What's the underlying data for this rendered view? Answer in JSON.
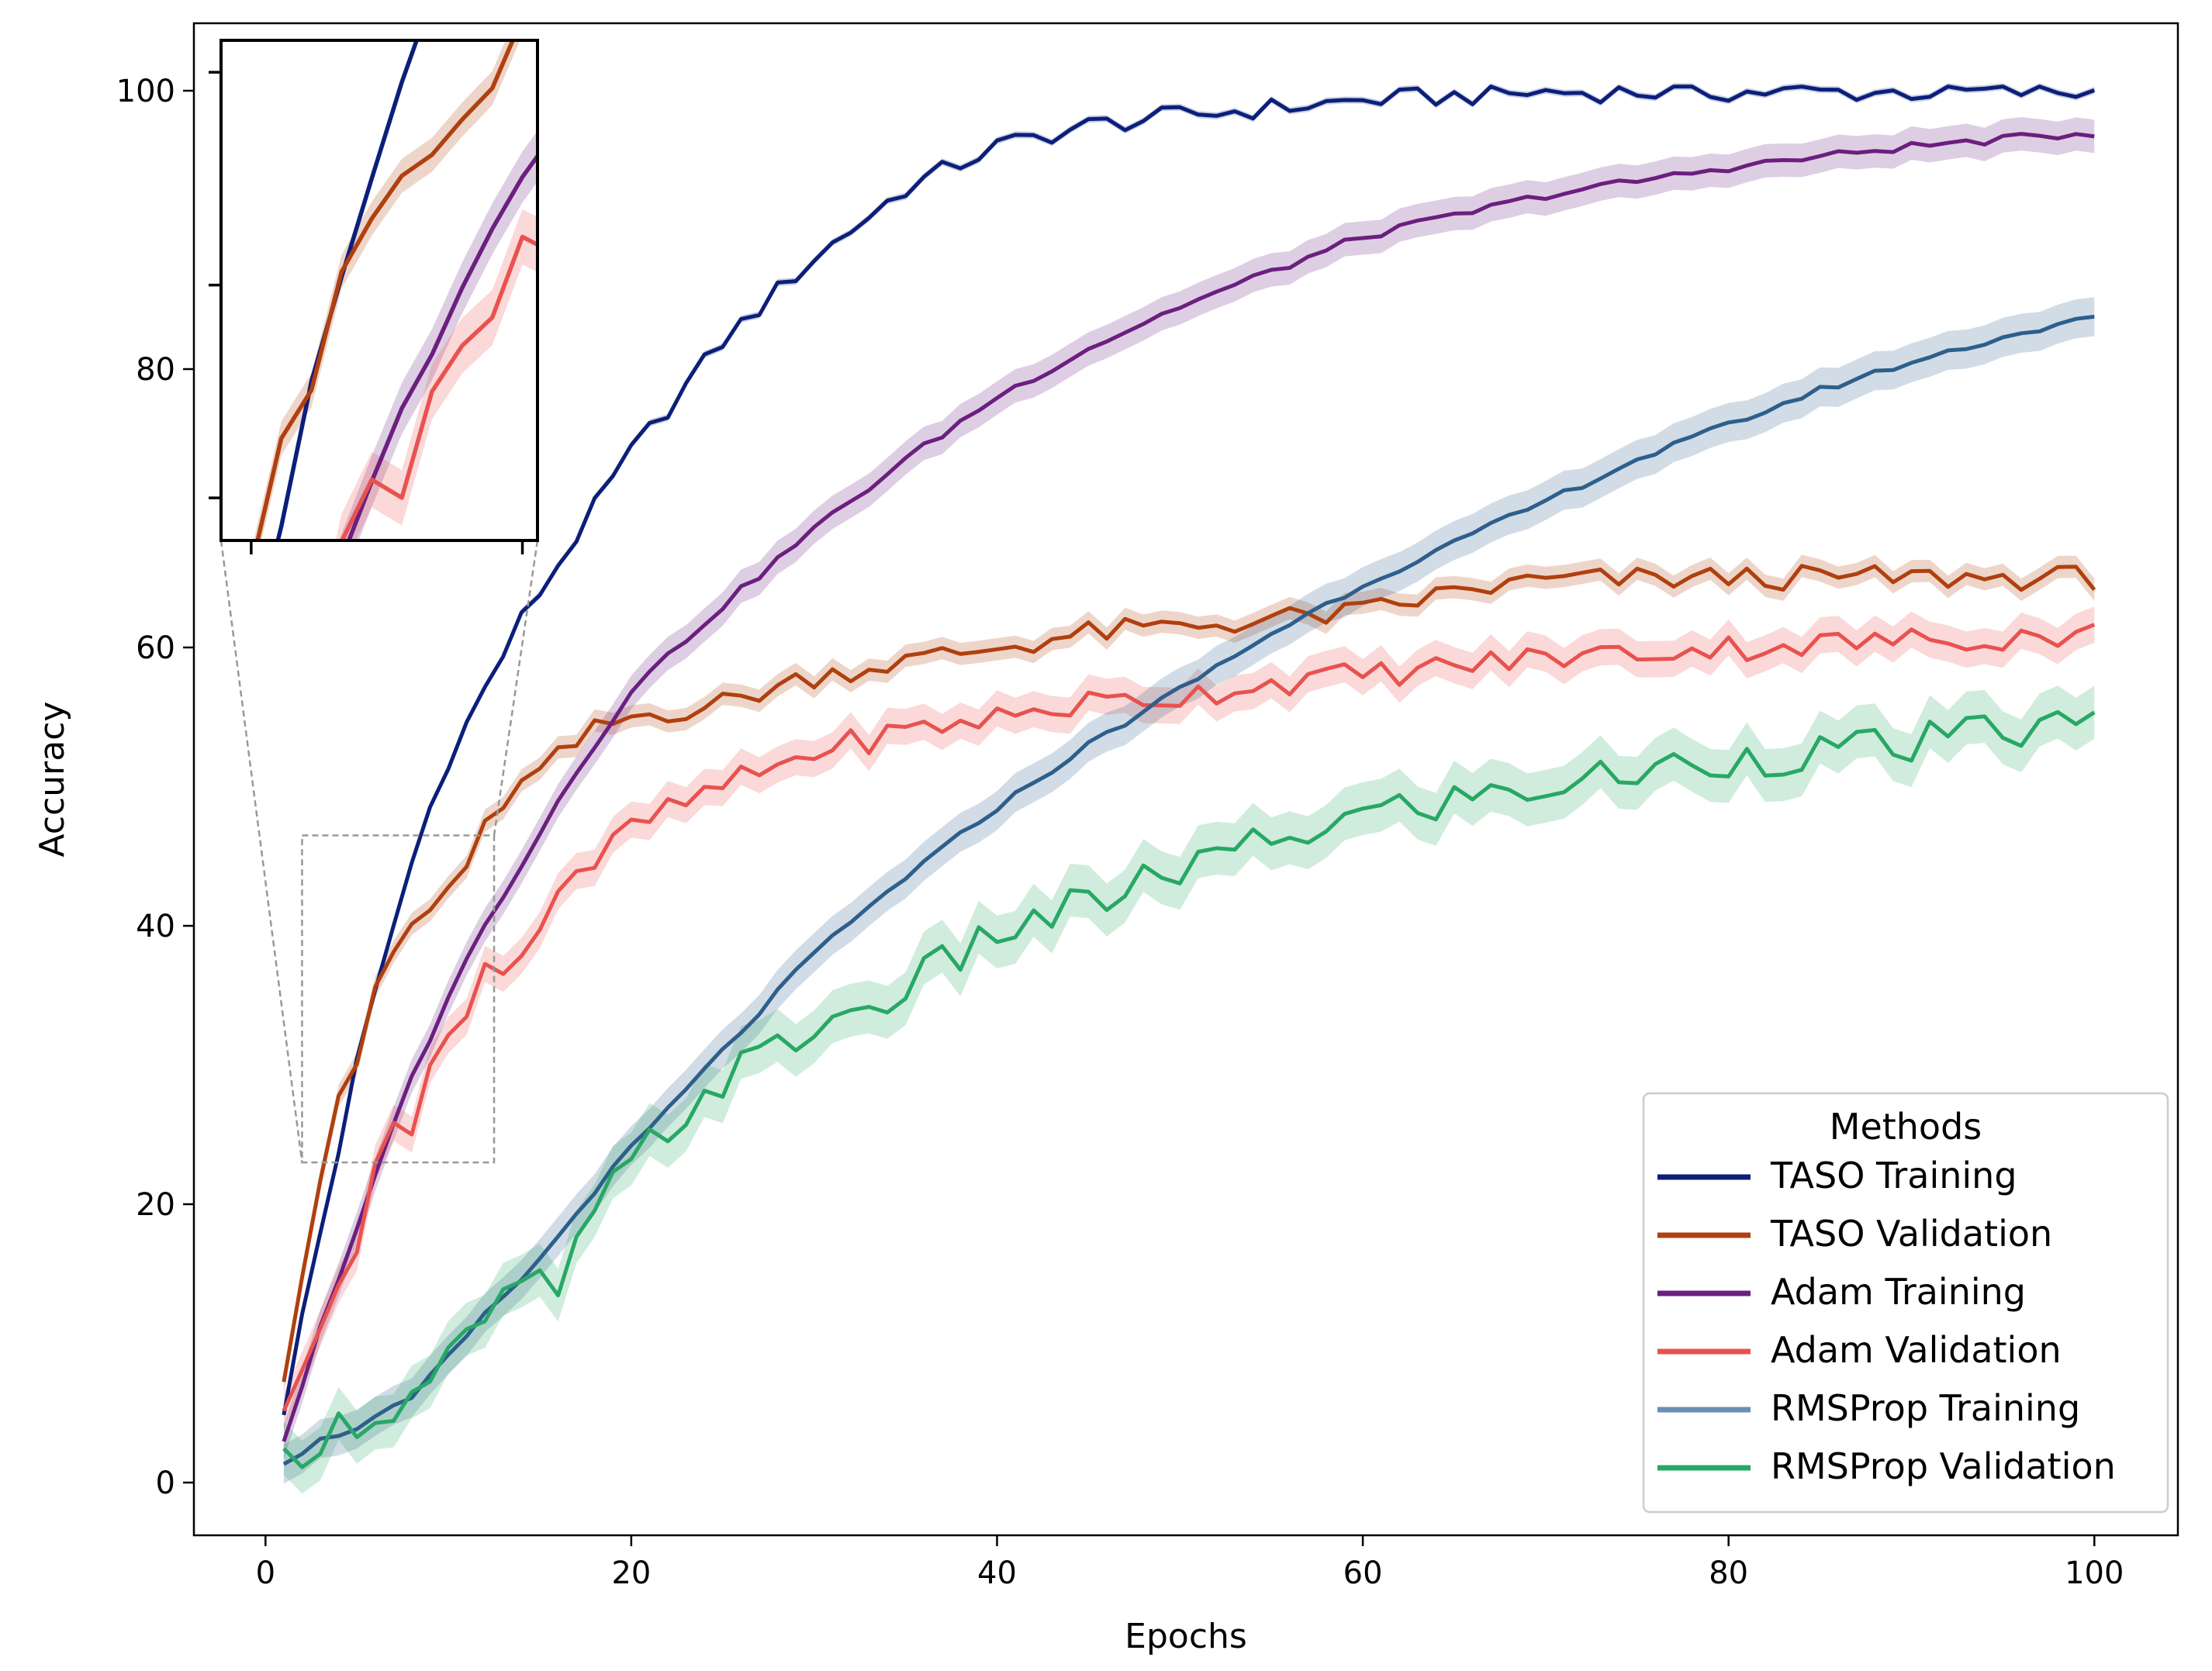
{
  "chart_data": {
    "type": "line",
    "title": "",
    "xlabel": "Epochs",
    "ylabel": "Accuracy",
    "xlim": [
      -4,
      104
    ],
    "ylim": [
      -3.5,
      104.5
    ],
    "xticks": [
      0,
      20,
      40,
      60,
      80,
      100
    ],
    "yticks": [
      0,
      20,
      40,
      60,
      80,
      100
    ],
    "legend": {
      "title": "Methods",
      "placement": "lower-right"
    },
    "series": [
      {
        "name": "TASO Training",
        "color": "#0b1f7a",
        "band": 0.25,
        "amp": 0.75,
        "tau": 14.5,
        "start": 1.5,
        "end": 100,
        "anchors": [
          [
            1,
            4.5
          ],
          [
            2,
            12
          ],
          [
            3,
            18
          ],
          [
            4,
            24
          ],
          [
            5,
            30
          ],
          [
            6,
            35
          ],
          [
            7,
            40
          ],
          [
            8,
            44.5
          ],
          [
            9,
            48.5
          ],
          [
            10,
            52
          ],
          [
            12,
            57
          ],
          [
            14,
            62
          ],
          [
            16,
            66
          ],
          [
            18,
            70
          ],
          [
            20,
            74
          ],
          [
            25,
            82
          ],
          [
            30,
            88
          ],
          [
            35,
            93
          ],
          [
            40,
            96
          ],
          [
            45,
            97.5
          ],
          [
            50,
            98.2
          ],
          [
            60,
            99.3
          ],
          [
            70,
            99.9
          ],
          [
            100,
            99.9
          ]
        ]
      },
      {
        "name": "TASO Validation",
        "color": "#b0400f",
        "band": 0.8,
        "amp": 0.9,
        "tau": 9,
        "start": 7.5,
        "end": 65,
        "anchors": [
          [
            1,
            8
          ],
          [
            2,
            15
          ],
          [
            3,
            22
          ],
          [
            4,
            27
          ],
          [
            5,
            30
          ],
          [
            6,
            35.5
          ],
          [
            7,
            38
          ],
          [
            8,
            40
          ],
          [
            9,
            41
          ],
          [
            10,
            43
          ],
          [
            11,
            43.5
          ],
          [
            12,
            47
          ],
          [
            13,
            49
          ],
          [
            14,
            50
          ],
          [
            15,
            51
          ],
          [
            16,
            52
          ],
          [
            17,
            53
          ],
          [
            18,
            54
          ],
          [
            20,
            55
          ],
          [
            25,
            56
          ],
          [
            30,
            58
          ],
          [
            35,
            59
          ],
          [
            40,
            60
          ],
          [
            45,
            61
          ],
          [
            50,
            61.5
          ],
          [
            55,
            62
          ],
          [
            60,
            62.5
          ],
          [
            65,
            64
          ],
          [
            70,
            64.8
          ],
          [
            80,
            65
          ],
          [
            100,
            65
          ]
        ]
      },
      {
        "name": "Adam Training",
        "color": "#6b1f7f",
        "band": 1.2,
        "amp": 0.3,
        "tau": 23,
        "start": 2.5,
        "end": 97,
        "anchors": [
          [
            1,
            3
          ],
          [
            2,
            7
          ],
          [
            3,
            11
          ],
          [
            4,
            14.5
          ],
          [
            5,
            18
          ],
          [
            6,
            22
          ],
          [
            7,
            26
          ],
          [
            8,
            29
          ],
          [
            9,
            32
          ],
          [
            10,
            35
          ],
          [
            12,
            40
          ],
          [
            14,
            44.5
          ],
          [
            16,
            49
          ],
          [
            18,
            53
          ],
          [
            20,
            57
          ],
          [
            25,
            63
          ],
          [
            30,
            68.5
          ],
          [
            35,
            73.5
          ],
          [
            40,
            78
          ],
          [
            45,
            81.5
          ],
          [
            50,
            84.5
          ],
          [
            55,
            87
          ],
          [
            60,
            89.5
          ],
          [
            65,
            91
          ],
          [
            70,
            92.5
          ],
          [
            80,
            94.5
          ],
          [
            90,
            96
          ],
          [
            100,
            97
          ]
        ]
      },
      {
        "name": "Adam Validation",
        "color": "#e8524f",
        "band": 1.3,
        "amp": 1.0,
        "tau": 14,
        "start": 4.5,
        "end": 61,
        "anchors": [
          [
            1,
            4.5
          ],
          [
            2,
            8
          ],
          [
            3,
            12
          ],
          [
            4,
            15
          ],
          [
            5,
            17
          ],
          [
            6,
            22
          ],
          [
            7,
            26
          ],
          [
            8,
            26
          ],
          [
            9,
            30
          ],
          [
            10,
            32
          ],
          [
            11,
            33
          ],
          [
            12,
            37
          ],
          [
            13,
            37.5
          ],
          [
            14,
            38
          ],
          [
            15,
            40
          ],
          [
            16,
            43
          ],
          [
            17,
            44
          ],
          [
            18,
            44.5
          ],
          [
            20,
            47
          ],
          [
            25,
            50
          ],
          [
            30,
            52.5
          ],
          [
            35,
            54
          ],
          [
            40,
            55
          ],
          [
            45,
            56
          ],
          [
            50,
            56.5
          ],
          [
            55,
            57.5
          ],
          [
            60,
            58
          ],
          [
            70,
            59.3
          ],
          [
            80,
            60
          ],
          [
            90,
            60.5
          ],
          [
            100,
            61
          ]
        ]
      },
      {
        "name": "RMSProp Training",
        "color": "#2e5f8c",
        "legend_color": "#6a8fb2",
        "band": 1.4,
        "amp": 0.25,
        "tau": 40,
        "start": 1.5,
        "end": 84,
        "anchors": [
          [
            1,
            1.5
          ],
          [
            3,
            3
          ],
          [
            5,
            4
          ],
          [
            8,
            6
          ],
          [
            10,
            9
          ],
          [
            12,
            12
          ],
          [
            15,
            16
          ],
          [
            18,
            21
          ],
          [
            20,
            24
          ],
          [
            25,
            31
          ],
          [
            30,
            38
          ],
          [
            35,
            43.5
          ],
          [
            40,
            48.5
          ],
          [
            45,
            53
          ],
          [
            50,
            57
          ],
          [
            55,
            61
          ],
          [
            60,
            64.5
          ],
          [
            65,
            67.5
          ],
          [
            70,
            70.5
          ],
          [
            75,
            73.5
          ],
          [
            80,
            76
          ],
          [
            85,
            78.5
          ],
          [
            90,
            80.5
          ],
          [
            95,
            82.3
          ],
          [
            100,
            83.7
          ]
        ]
      },
      {
        "name": "RMSProp Validation",
        "color": "#27a865",
        "band": 1.9,
        "amp": 1.5,
        "tau": 25,
        "start": 1.5,
        "end": 55,
        "anchors": [
          [
            1,
            1.5
          ],
          [
            3,
            3.5
          ],
          [
            5,
            4.5
          ],
          [
            8,
            6
          ],
          [
            10,
            9
          ],
          [
            12,
            11
          ],
          [
            14,
            14.5
          ],
          [
            16,
            14
          ],
          [
            18,
            19
          ],
          [
            20,
            23
          ],
          [
            25,
            29
          ],
          [
            30,
            32.5
          ],
          [
            35,
            35.5
          ],
          [
            40,
            39.5
          ],
          [
            45,
            41.5
          ],
          [
            50,
            44
          ],
          [
            55,
            46
          ],
          [
            60,
            48
          ],
          [
            65,
            49
          ],
          [
            70,
            50
          ],
          [
            75,
            51
          ],
          [
            80,
            52
          ],
          [
            85,
            52.5
          ],
          [
            90,
            53
          ],
          [
            95,
            54
          ],
          [
            100,
            54.5
          ]
        ]
      }
    ]
  },
  "inset": {
    "xlim": [
      2,
      12.5
    ],
    "ylim": [
      23,
      46.5
    ]
  }
}
